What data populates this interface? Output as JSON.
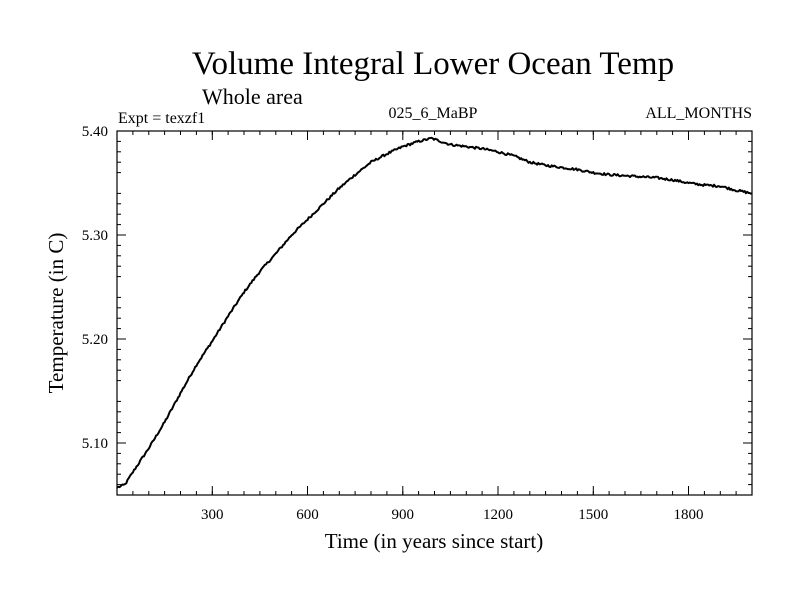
{
  "chart_data": {
    "type": "line",
    "title": "Volume Integral Lower Ocean Temp",
    "subtitle": "Whole area",
    "expt_label": "Expt = texzf1",
    "run_label": "025_6_MaBP",
    "period_label": "ALL_MONTHS",
    "xlabel": "Time (in years since start)",
    "ylabel": "Temperature (in C)",
    "xlim": [
      0,
      2000
    ],
    "ylim": [
      5.05,
      5.4
    ],
    "xticks": [
      300,
      600,
      900,
      1200,
      1500,
      1800
    ],
    "xtick_labels": [
      "300",
      "600",
      "900",
      "1200",
      "1500",
      "1800"
    ],
    "yticks": [
      5.1,
      5.2,
      5.3,
      5.4
    ],
    "ytick_labels": [
      "5.10",
      "5.20",
      "5.30",
      "5.40"
    ],
    "grid": false,
    "series": [
      {
        "name": "texzf1",
        "x": [
          0,
          25,
          50,
          100,
          150,
          200,
          250,
          300,
          350,
          400,
          450,
          500,
          550,
          600,
          650,
          700,
          750,
          800,
          850,
          900,
          950,
          990,
          1050,
          1100,
          1150,
          1200,
          1250,
          1300,
          1350,
          1400,
          1450,
          1500,
          1550,
          1600,
          1650,
          1700,
          1750,
          1800,
          1850,
          1900,
          1950,
          2000
        ],
        "values": [
          5.057,
          5.06,
          5.072,
          5.095,
          5.12,
          5.148,
          5.175,
          5.198,
          5.222,
          5.245,
          5.265,
          5.282,
          5.3,
          5.315,
          5.33,
          5.345,
          5.358,
          5.37,
          5.378,
          5.385,
          5.39,
          5.393,
          5.387,
          5.385,
          5.383,
          5.38,
          5.376,
          5.37,
          5.367,
          5.365,
          5.363,
          5.36,
          5.358,
          5.357,
          5.356,
          5.355,
          5.353,
          5.35,
          5.348,
          5.347,
          5.343,
          5.34
        ]
      }
    ]
  }
}
